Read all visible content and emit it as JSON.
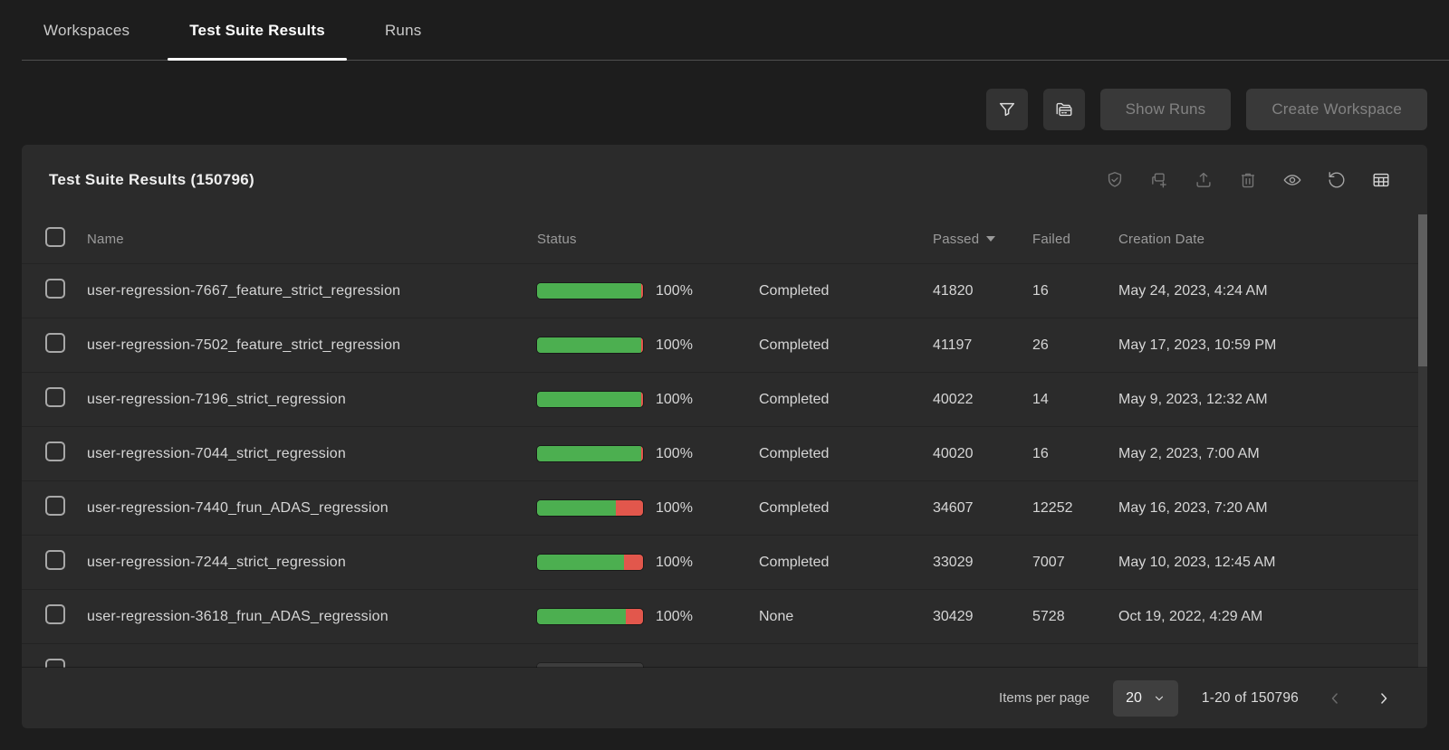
{
  "tabs": [
    {
      "label": "Workspaces",
      "active": false
    },
    {
      "label": "Test Suite Results",
      "active": true
    },
    {
      "label": "Runs",
      "active": false
    }
  ],
  "actions": {
    "icon_buttons": [
      "filter-icon",
      "workspace-folder-icon"
    ],
    "show_runs_label": "Show Runs",
    "create_workspace_label": "Create Workspace"
  },
  "panel": {
    "title": "Test Suite Results (150796)",
    "toolbar_icons": [
      "shield-check-icon",
      "add-group-icon",
      "upload-icon",
      "delete-icon",
      "view-icon",
      "refresh-icon",
      "table-columns-icon"
    ],
    "columns": {
      "name": "Name",
      "status": "Status",
      "passed": "Passed",
      "failed": "Failed",
      "creation_date": "Creation Date"
    },
    "sorted_by": "Passed descending",
    "rows": [
      {
        "name": "user-regression-7667_feature_strict_regression",
        "percent": "100%",
        "state": "Completed",
        "passed": "41820",
        "failed": "16",
        "date": "May 24, 2023, 4:24 AM",
        "bar": {
          "green": 99,
          "red": 1
        }
      },
      {
        "name": "user-regression-7502_feature_strict_regression",
        "percent": "100%",
        "state": "Completed",
        "passed": "41197",
        "failed": "26",
        "date": "May 17, 2023, 10:59 PM",
        "bar": {
          "green": 99,
          "red": 1
        }
      },
      {
        "name": "user-regression-7196_strict_regression",
        "percent": "100%",
        "state": "Completed",
        "passed": "40022",
        "failed": "14",
        "date": "May 9, 2023, 12:32 AM",
        "bar": {
          "green": 99,
          "red": 1
        }
      },
      {
        "name": "user-regression-7044_strict_regression",
        "percent": "100%",
        "state": "Completed",
        "passed": "40020",
        "failed": "16",
        "date": "May 2, 2023, 7:00 AM",
        "bar": {
          "green": 99,
          "red": 1
        }
      },
      {
        "name": "user-regression-7440_frun_ADAS_regression",
        "percent": "100%",
        "state": "Completed",
        "passed": "34607",
        "failed": "12252",
        "date": "May 16, 2023, 7:20 AM",
        "bar": {
          "green": 74,
          "red": 26
        }
      },
      {
        "name": "user-regression-7244_strict_regression",
        "percent": "100%",
        "state": "Completed",
        "passed": "33029",
        "failed": "7007",
        "date": "May 10, 2023, 12:45 AM",
        "bar": {
          "green": 82,
          "red": 18
        }
      },
      {
        "name": "user-regression-3618_frun_ADAS_regression",
        "percent": "100%",
        "state": "None",
        "passed": "30429",
        "failed": "5728",
        "date": "Oct 19, 2022, 4:29 AM",
        "bar": {
          "green": 84,
          "red": 16
        }
      }
    ]
  },
  "pagination": {
    "items_per_page_label": "Items per page",
    "page_size": "20",
    "range": "1-20 of 150796"
  },
  "colors": {
    "pass_green": "#4caf50",
    "fail_red": "#e2574c",
    "active_tab_underline": "#ffffff"
  }
}
